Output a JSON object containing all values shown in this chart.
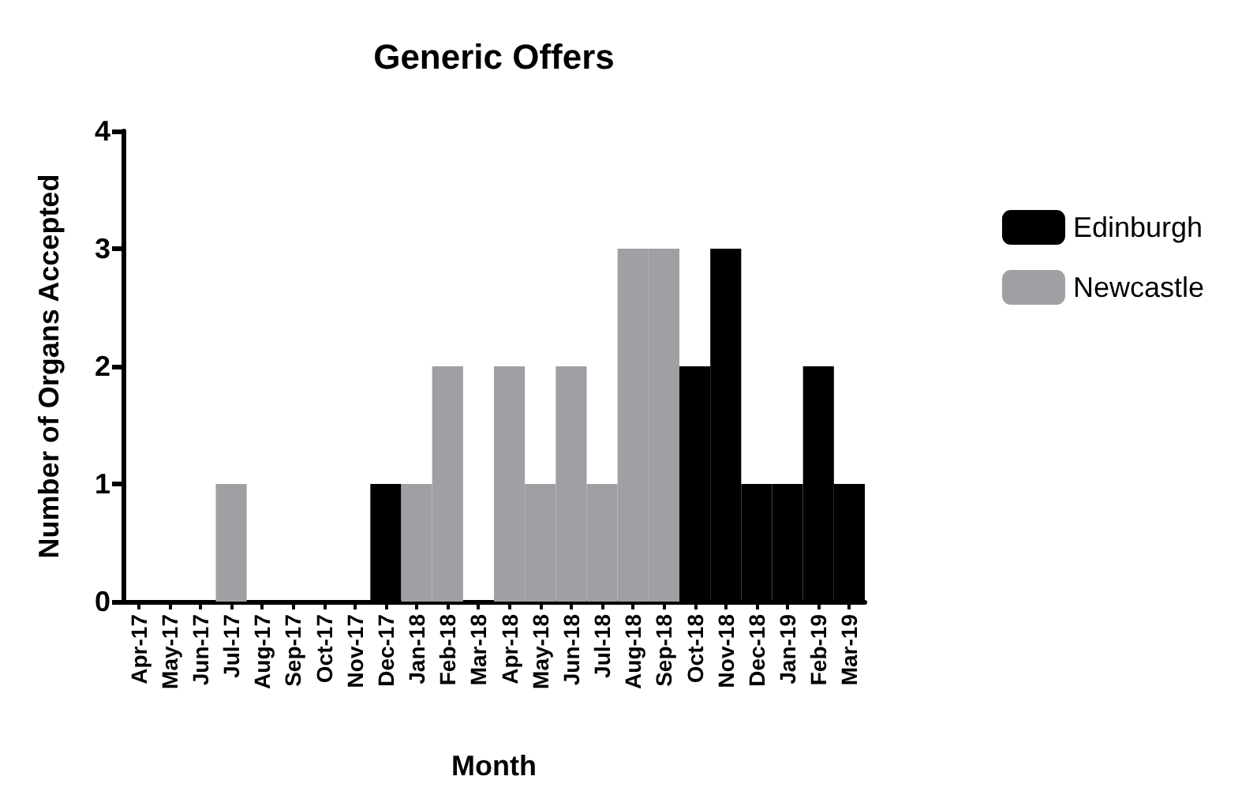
{
  "chart_data": {
    "type": "bar",
    "title": "Generic Offers",
    "xlabel": "Month",
    "ylabel": "Number of Organs Accepted",
    "categories": [
      "Apr-17",
      "May-17",
      "Jun-17",
      "Jul-17",
      "Aug-17",
      "Sep-17",
      "Oct-17",
      "Nov-17",
      "Dec-17",
      "Jan-18",
      "Feb-18",
      "Mar-18",
      "Apr-18",
      "May-18",
      "Jun-18",
      "Jul-18",
      "Aug-18",
      "Sep-18",
      "Oct-18",
      "Nov-18",
      "Dec-18",
      "Jan-19",
      "Feb-19",
      "Mar-19"
    ],
    "series": [
      {
        "name": "Edinburgh",
        "color": "#000000",
        "values": [
          0,
          0,
          0,
          0,
          0,
          0,
          0,
          0,
          1,
          0,
          0,
          0,
          0,
          0,
          0,
          0,
          0,
          0,
          2,
          3,
          1,
          1,
          2,
          1
        ]
      },
      {
        "name": "Newcastle",
        "color": "#a0a0a4",
        "values": [
          0,
          0,
          0,
          1,
          0,
          0,
          0,
          0,
          0,
          1,
          2,
          0,
          2,
          1,
          2,
          1,
          3,
          3,
          0,
          0,
          0,
          0,
          0,
          0
        ]
      }
    ],
    "stacked": true,
    "ylim": [
      0,
      4
    ],
    "yticks": [
      0,
      1,
      2,
      3,
      4
    ],
    "grid": false,
    "legend": "right"
  }
}
